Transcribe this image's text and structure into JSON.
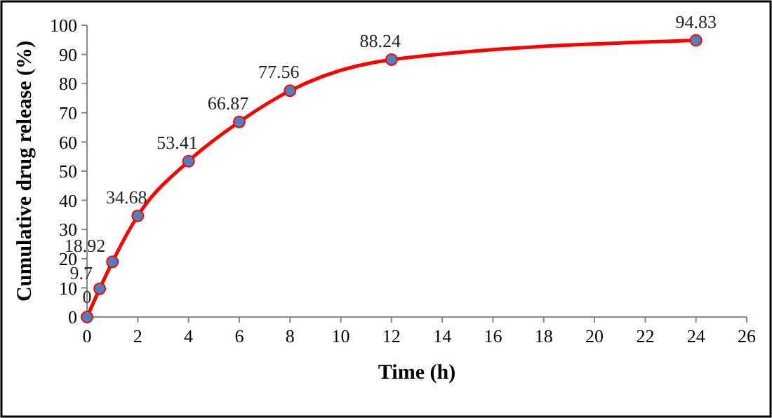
{
  "chart_data": {
    "type": "line",
    "xlabel": "Time (h)",
    "ylabel": "Cumulative drug release (%)",
    "x": [
      0,
      0.5,
      1,
      2,
      4,
      6,
      8,
      12,
      24
    ],
    "series": [
      {
        "color": "#ff0000",
        "values": [
          0,
          9.7,
          18.92,
          34.68,
          53.41,
          66.87,
          77.56,
          88.24,
          94.83
        ]
      }
    ],
    "xlim": [
      0,
      26
    ],
    "xticks": [
      0,
      2,
      4,
      6,
      8,
      10,
      12,
      14,
      16,
      18,
      20,
      22,
      24,
      26
    ],
    "ylim": [
      0,
      100
    ],
    "yticks": [
      0,
      10,
      20,
      30,
      40,
      50,
      60,
      70,
      80,
      90,
      100
    ],
    "data_labels": true,
    "marker": "circle",
    "line_style": "solid",
    "grid": false
  }
}
